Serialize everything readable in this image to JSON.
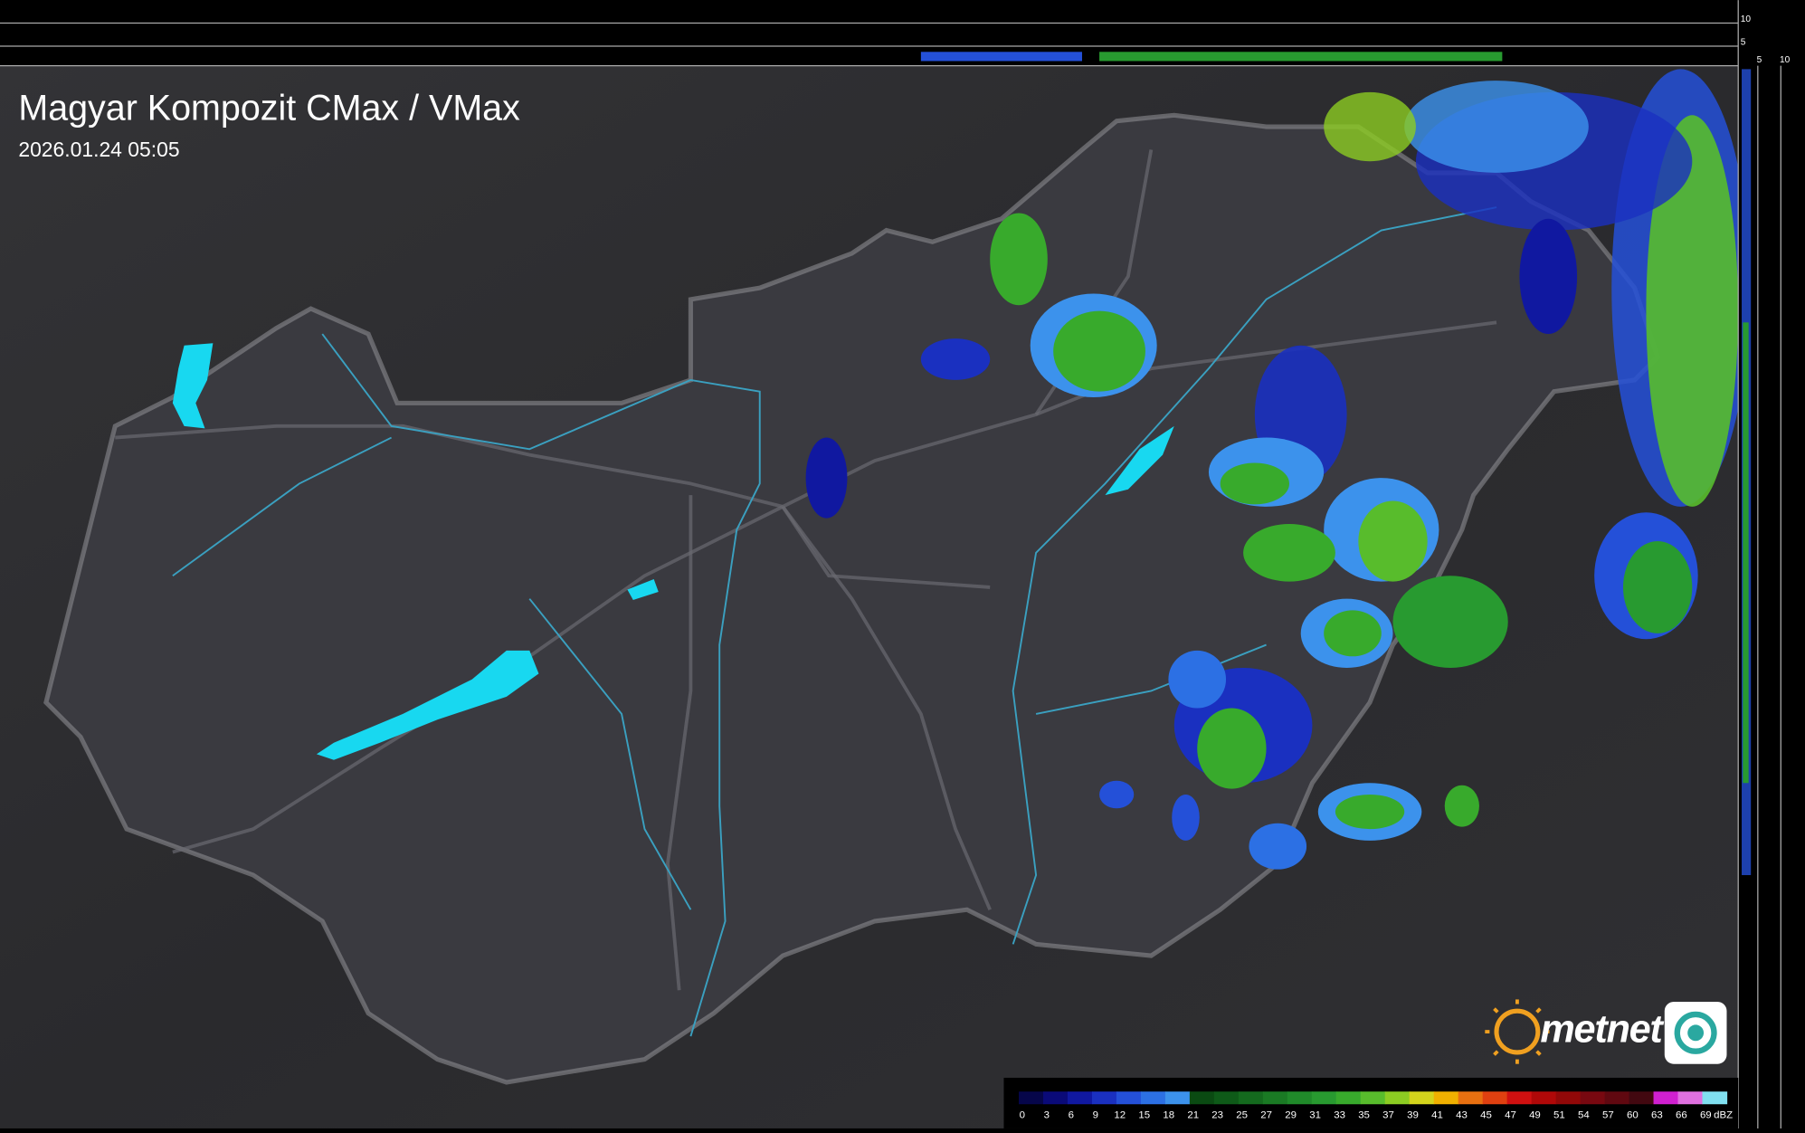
{
  "header": {
    "title": "Magyar Kompozit CMax / VMax",
    "timestamp": "2026.01.24 05:05"
  },
  "side_scale": {
    "top_labels": [
      10,
      5
    ],
    "bottom_labels": [
      5,
      10
    ]
  },
  "logo": {
    "text": "metnet"
  },
  "legend": {
    "unit": "dBZ",
    "items": [
      {
        "value": 0,
        "color": "#06064a"
      },
      {
        "value": 3,
        "color": "#0a0a78"
      },
      {
        "value": 6,
        "color": "#1018a0"
      },
      {
        "value": 9,
        "color": "#1a30c0"
      },
      {
        "value": 12,
        "color": "#2450d8"
      },
      {
        "value": 15,
        "color": "#2c70e4"
      },
      {
        "value": 18,
        "color": "#3c92ec"
      },
      {
        "value": 21,
        "color": "#0a4a12"
      },
      {
        "value": 23,
        "color": "#0e5a18"
      },
      {
        "value": 25,
        "color": "#146a1e"
      },
      {
        "value": 27,
        "color": "#1a7a24"
      },
      {
        "value": 29,
        "color": "#208a2a"
      },
      {
        "value": 31,
        "color": "#289a30"
      },
      {
        "value": 33,
        "color": "#38aa2c"
      },
      {
        "value": 35,
        "color": "#58bc2c"
      },
      {
        "value": 37,
        "color": "#8ccc22"
      },
      {
        "value": 39,
        "color": "#d4d41c"
      },
      {
        "value": 41,
        "color": "#f0b000"
      },
      {
        "value": 43,
        "color": "#e87010"
      },
      {
        "value": 45,
        "color": "#e04010"
      },
      {
        "value": 47,
        "color": "#d01010"
      },
      {
        "value": 49,
        "color": "#b00808"
      },
      {
        "value": 51,
        "color": "#920808"
      },
      {
        "value": 54,
        "color": "#780810"
      },
      {
        "value": 57,
        "color": "#600810"
      },
      {
        "value": 60,
        "color": "#420810"
      },
      {
        "value": 63,
        "color": "#d020d0"
      },
      {
        "value": 66,
        "color": "#e070e0"
      },
      {
        "value": 69,
        "color": "#80e0f0"
      }
    ]
  }
}
